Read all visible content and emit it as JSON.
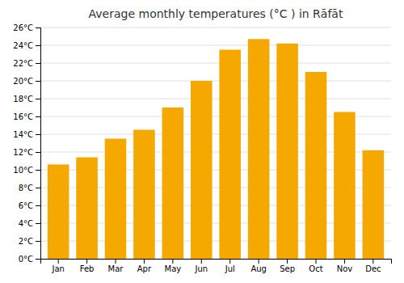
{
  "chart_data": {
    "type": "bar",
    "title": "Average monthly temperatures (°C ) in Rāfāt",
    "categories": [
      "Jan",
      "Feb",
      "Mar",
      "Apr",
      "May",
      "Jun",
      "Jul",
      "Aug",
      "Sep",
      "Oct",
      "Nov",
      "Dec"
    ],
    "values": [
      10.6,
      11.4,
      13.5,
      14.5,
      17.0,
      20.0,
      23.5,
      24.7,
      24.2,
      21.0,
      16.5,
      12.2
    ],
    "color": "#F5A800",
    "ylim": [
      0,
      26
    ],
    "yticks": [
      {
        "value": 0,
        "label": "0°C"
      },
      {
        "value": 2,
        "label": "2°C"
      },
      {
        "value": 4,
        "label": "4°C"
      },
      {
        "value": 6,
        "label": "6°C"
      },
      {
        "value": 8,
        "label": "8°C"
      },
      {
        "value": 10,
        "label": "10°C"
      },
      {
        "value": 12,
        "label": "12°C"
      },
      {
        "value": 14,
        "label": "14°C"
      },
      {
        "value": 16,
        "label": "16°C"
      },
      {
        "value": 18,
        "label": "18°C"
      },
      {
        "value": 20,
        "label": "20°C"
      },
      {
        "value": 22,
        "label": "22°C"
      },
      {
        "value": 24,
        "label": "24°C"
      },
      {
        "value": 26,
        "label": "26°C"
      }
    ],
    "grid": true
  }
}
